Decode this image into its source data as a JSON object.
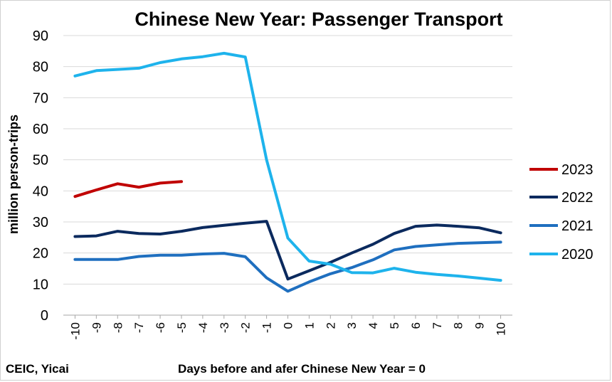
{
  "chart_data": {
    "type": "line",
    "title": "Chinese New Year: Passenger Transport",
    "ylabel": "million person-trips",
    "xlabel": "Days before and afer Chinese New Year = 0",
    "source": "CEIC, Yicai",
    "ylim": [
      0,
      90
    ],
    "yticks": [
      0,
      10,
      20,
      30,
      40,
      50,
      60,
      70,
      80,
      90
    ],
    "x": [
      -10,
      -9,
      -8,
      -7,
      -6,
      -5,
      -4,
      -3,
      -2,
      -1,
      0,
      1,
      2,
      3,
      4,
      5,
      6,
      7,
      8,
      9,
      10
    ],
    "grid": "horizontal",
    "legend_position": "right",
    "series": [
      {
        "name": "2023",
        "color": "#c00000",
        "values": [
          38.2,
          40.3,
          42.3,
          41.2,
          42.5,
          43.0,
          null,
          null,
          null,
          null,
          null,
          null,
          null,
          null,
          null,
          null,
          null,
          null,
          null,
          null,
          null
        ]
      },
      {
        "name": "2022",
        "color": "#0b2a5e",
        "values": [
          25.3,
          25.5,
          27.0,
          26.3,
          26.1,
          27.0,
          28.2,
          28.9,
          29.6,
          30.2,
          11.6,
          14.3,
          17.0,
          20.0,
          22.8,
          26.3,
          28.6,
          29.0,
          28.6,
          28.1,
          26.5
        ]
      },
      {
        "name": "2021",
        "color": "#1f6fbf",
        "values": [
          17.9,
          17.9,
          17.9,
          18.9,
          19.3,
          19.3,
          19.7,
          19.9,
          18.8,
          12.0,
          7.7,
          10.7,
          13.3,
          15.3,
          17.8,
          21.0,
          22.1,
          22.6,
          23.1,
          23.3,
          23.5
        ]
      },
      {
        "name": "2020",
        "color": "#1eb3ec",
        "values": [
          77.0,
          78.7,
          79.1,
          79.5,
          81.3,
          82.5,
          83.2,
          84.3,
          83.1,
          50.0,
          24.8,
          17.4,
          16.4,
          13.7,
          13.6,
          15.1,
          13.8,
          13.1,
          12.6,
          11.9,
          11.2
        ]
      }
    ]
  }
}
